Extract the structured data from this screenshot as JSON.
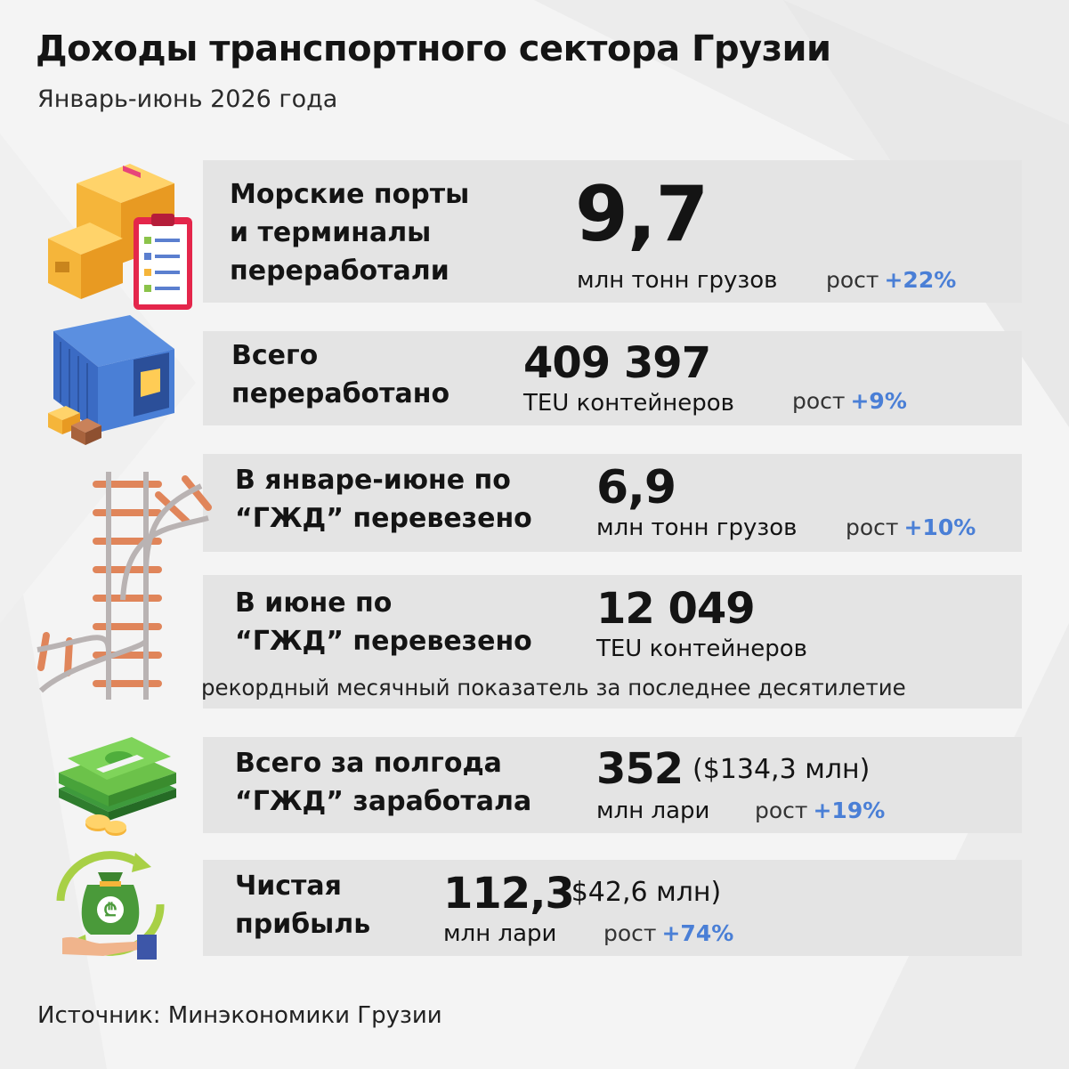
{
  "header": {
    "title": "Доходы транспортного сектора Грузии",
    "subtitle": "Январь-июнь 2026 года"
  },
  "rows": {
    "ports": {
      "label_lines": [
        "Морские порты",
        "и терминалы",
        "переработали"
      ],
      "value": "9,7",
      "unit": "млн тонн грузов",
      "growth_label": "рост",
      "growth_value": "+22%",
      "icon": "cargo-boxes-clipboard-icon"
    },
    "containers": {
      "label_lines": [
        "Всего",
        "переработано"
      ],
      "value": "409 397",
      "unit": "TEU контейнеров",
      "growth_label": "рост",
      "growth_value": "+9%",
      "icon": "shipping-container-icon"
    },
    "rail_halfyear": {
      "label_lines": [
        "В январе-июне по",
        "“ГЖД” перевезено"
      ],
      "value": "6,9",
      "unit": "млн тонн грузов",
      "growth_label": "рост",
      "growth_value": "+10%",
      "icon": "railway-tracks-icon"
    },
    "rail_june": {
      "label_lines": [
        "В июне по",
        "“ГЖД” перевезено"
      ],
      "value": "12 049",
      "unit": "TEU контейнеров",
      "note": "рекордный месячный показатель за последнее десятилетие"
    },
    "rail_income": {
      "label_lines": [
        "Всего за полгода",
        "“ГЖД” заработала"
      ],
      "value": "352",
      "usd": "($134,3 млн)",
      "unit": "млн лари",
      "growth_label": "рост",
      "growth_value": "+19%",
      "icon": "money-stack-coins-icon"
    },
    "net_profit": {
      "label_lines": [
        "Чистая",
        "прибыль"
      ],
      "value": "112,3",
      "usd": "($42,6 млн)",
      "unit": "млн лари",
      "growth_label": "рост",
      "growth_value": "+74%",
      "icon": "money-bag-hand-icon"
    }
  },
  "footer": {
    "source": "Источник: Минэкономики Грузии"
  },
  "colors": {
    "background": "#f4f4f4",
    "band": "#e4e4e4",
    "accent_growth": "#4a7fd6",
    "text": "#141414"
  }
}
